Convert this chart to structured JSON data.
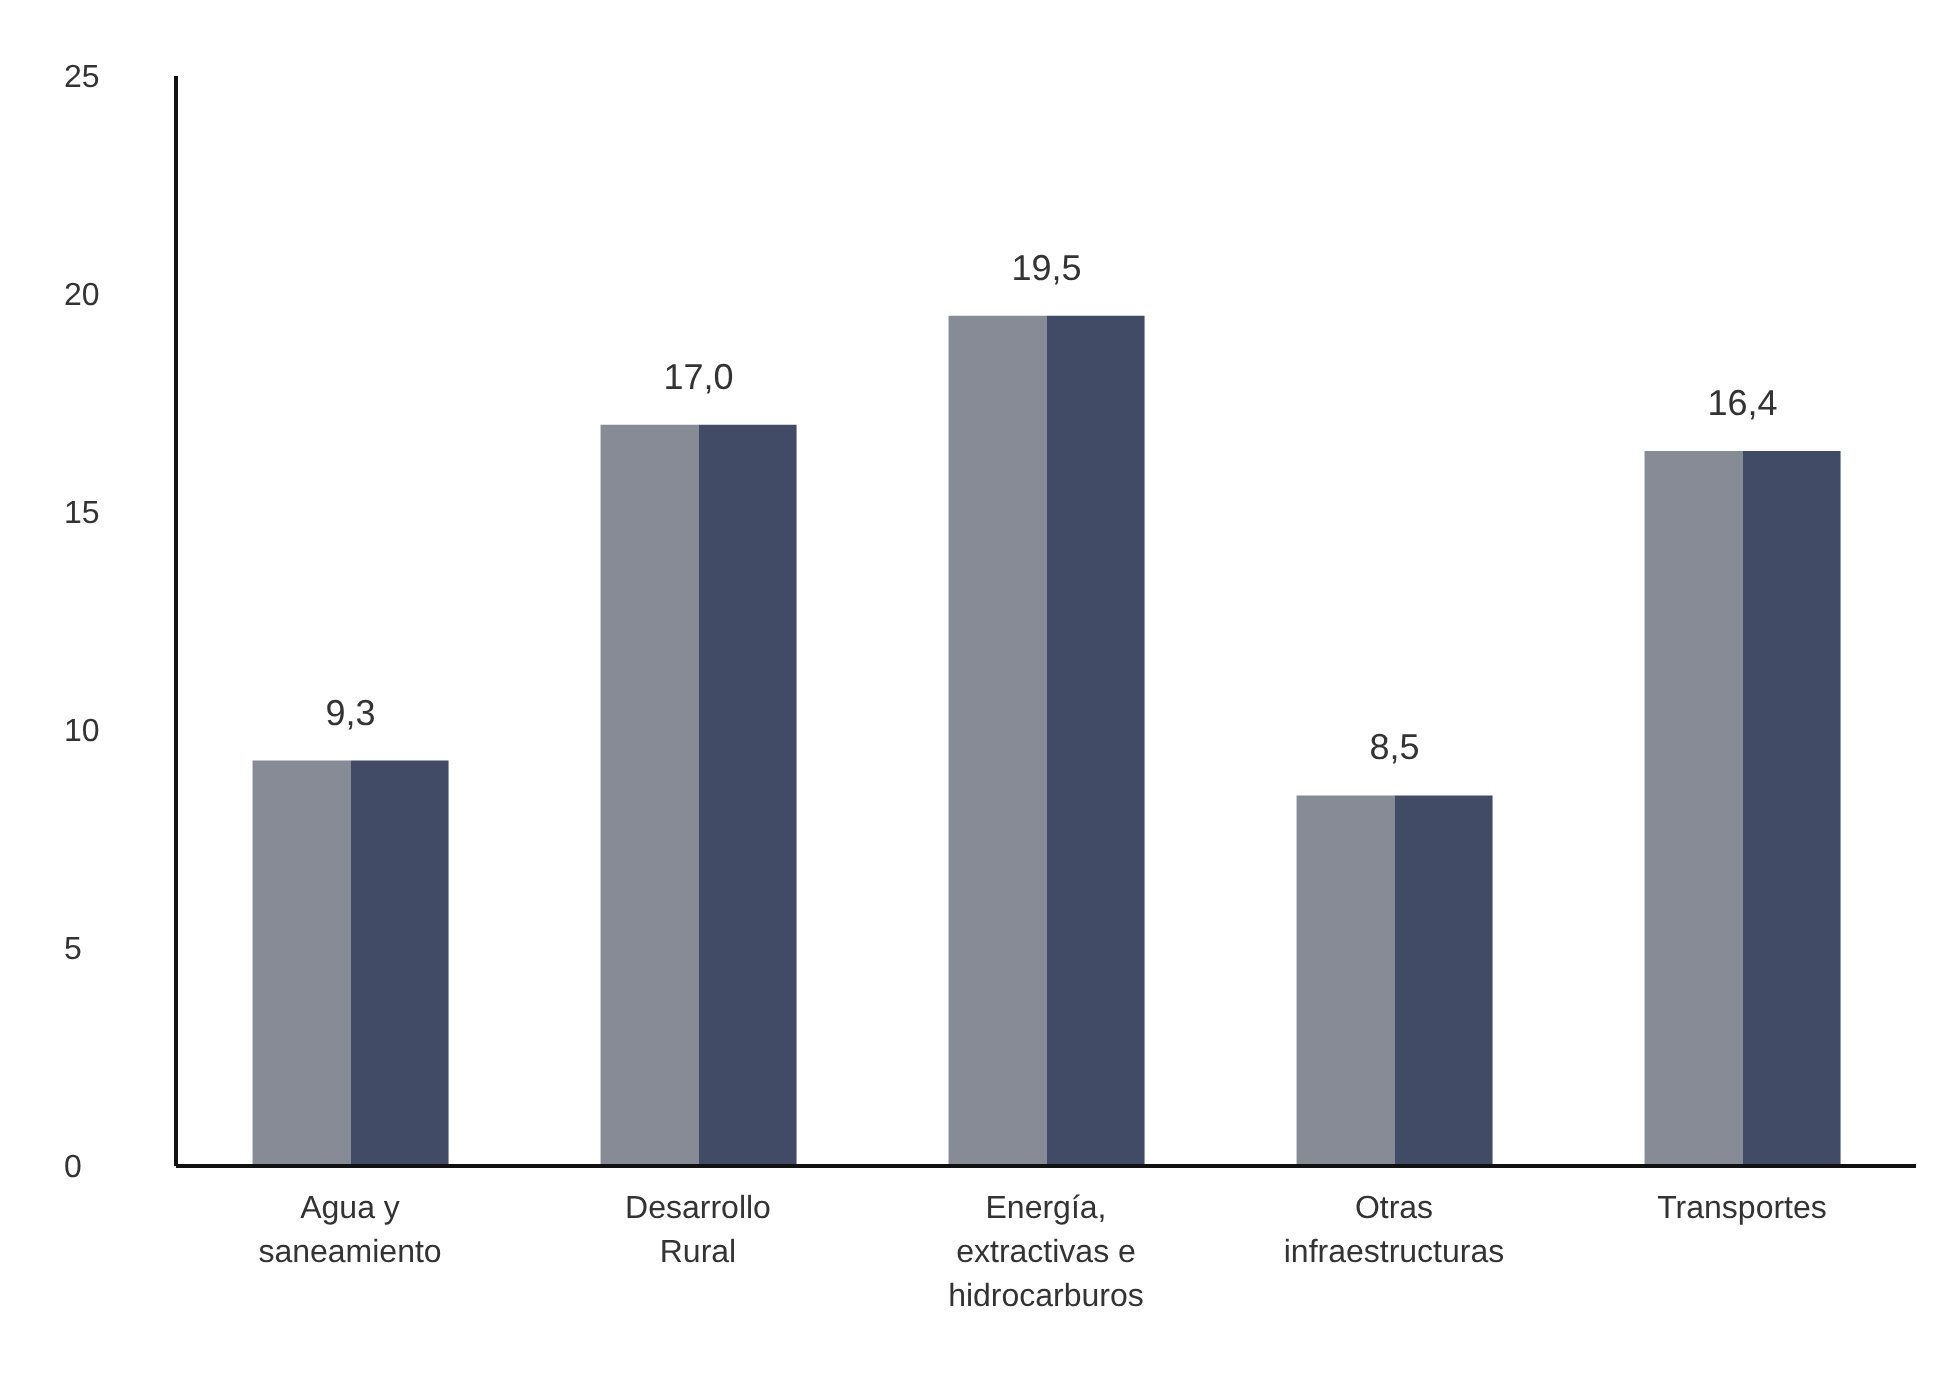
{
  "chart_data": {
    "type": "bar",
    "categories": [
      "Agua y saneamiento",
      "Desarrollo Rural",
      "Energía, extractivas e hidrocarburos",
      "Otras infraestructuras",
      "Transportes"
    ],
    "series": [
      {
        "color": "#868b96",
        "values": [
          9.3,
          17.0,
          19.5,
          8.5,
          16.4
        ],
        "value_labels": [
          "9,3",
          "17,0",
          "19,5",
          "8,5",
          "16,4"
        ]
      },
      {
        "color": "#424b66",
        "values": [
          9.3,
          17.0,
          19.5,
          8.5,
          16.4
        ]
      }
    ],
    "ylim": [
      0,
      25
    ],
    "yticks": [
      0,
      5,
      10,
      15,
      20,
      25
    ],
    "grid": false,
    "legend": false
  }
}
